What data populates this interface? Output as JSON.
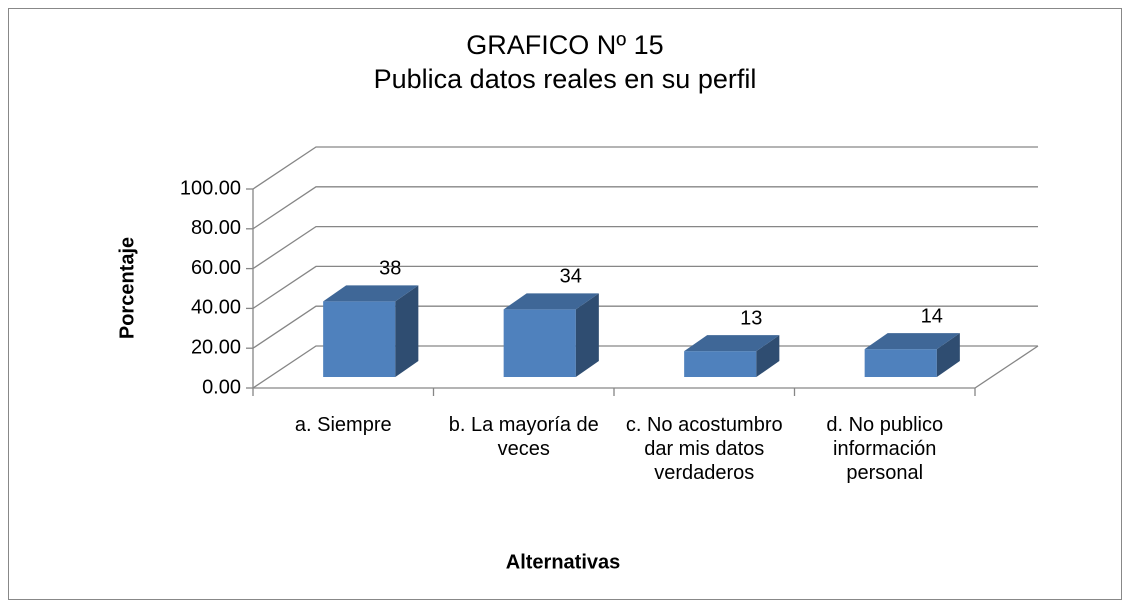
{
  "chart_data": {
    "type": "bar3d",
    "title": "GRAFICO Nº 15",
    "subtitle": "Publica datos reales en su perfil",
    "x_label": "Alternativas",
    "y_label": "Porcentaje",
    "categories": [
      "a. Siempre",
      "b. La mayoría de veces",
      "c. No acostumbro dar mis datos verdaderos",
      "d. No publico información personal"
    ],
    "values": [
      38,
      34,
      13,
      14
    ],
    "color": "#4f81bd",
    "ylim": [
      0,
      100
    ],
    "yticks": [
      {
        "value": 0,
        "label": "0.00"
      },
      {
        "value": 20,
        "label": "20.00"
      },
      {
        "value": 40,
        "label": "40.00"
      },
      {
        "value": 60,
        "label": "60.00"
      },
      {
        "value": 80,
        "label": "80.00"
      },
      {
        "value": 100,
        "label": "100.00"
      }
    ],
    "grid": true
  }
}
